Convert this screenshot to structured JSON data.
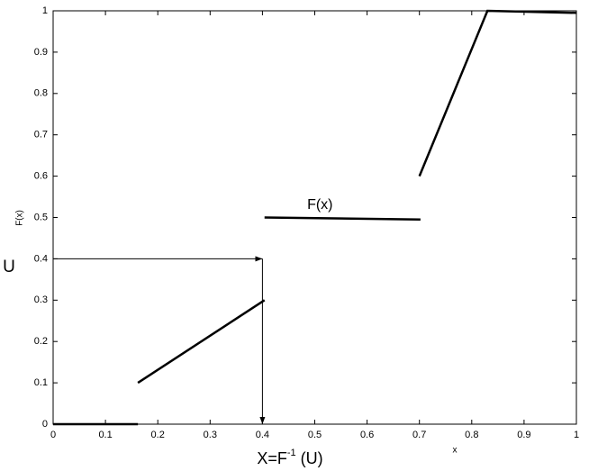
{
  "chart_data": {
    "type": "line",
    "ylabel": "F(x)",
    "xlabel": "x",
    "u_label": "U",
    "inverse_label": {
      "main": "X=F",
      "sup": "-1",
      "rest": " (U)"
    },
    "annotations": [
      {
        "text": "F(x)",
        "x": 0.51,
        "y": 0.53
      }
    ],
    "arrow": {
      "x": 0.4,
      "u": 0.4
    },
    "x": [
      0,
      0.162,
      0.162,
      0.162,
      0.404,
      0.404,
      0.404,
      0.702,
      0.7,
      0.7,
      0.83,
      1
    ],
    "series": [
      {
        "color": "#000000",
        "values": [
          0,
          0,
          null,
          0.1,
          0.3,
          null,
          0.5,
          0.495,
          null,
          0.6,
          1,
          0.995
        ]
      }
    ],
    "xlim": [
      0,
      1
    ],
    "ylim": [
      0,
      1
    ],
    "xticks": [
      0,
      0.1,
      0.2,
      0.3,
      0.4,
      0.5,
      0.6,
      0.7,
      0.8,
      0.9,
      1
    ],
    "yticks": [
      0,
      0.1,
      0.2,
      0.3,
      0.4,
      0.5,
      0.6,
      0.7,
      0.8,
      0.9,
      1
    ],
    "grid": false
  }
}
